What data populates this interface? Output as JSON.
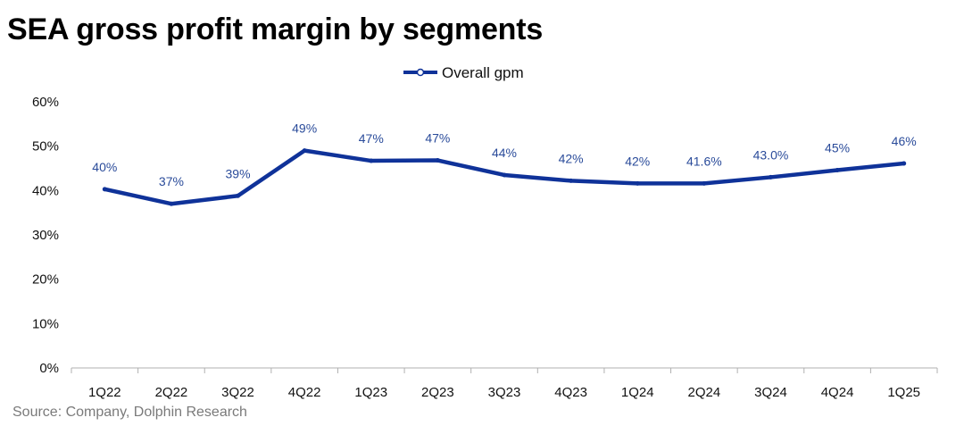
{
  "title": "SEA gross profit margin by segments",
  "source": "Source: Company, Dolphin Research",
  "colors": {
    "line": "#0f3299",
    "label": "#2a4b9a",
    "axis": "#b0b0b0"
  },
  "chart_data": {
    "type": "line",
    "title": "SEA gross profit margin by segments",
    "xlabel": "",
    "ylabel": "",
    "categories": [
      "1Q22",
      "2Q22",
      "3Q22",
      "4Q22",
      "1Q23",
      "2Q23",
      "3Q23",
      "4Q23",
      "1Q24",
      "2Q24",
      "3Q24",
      "4Q24",
      "1Q25"
    ],
    "series": [
      {
        "name": "Overall gpm",
        "values": [
          40.3,
          37.0,
          38.8,
          49.0,
          46.7,
          46.8,
          43.5,
          42.2,
          41.6,
          41.6,
          43.0,
          44.6,
          46.1
        ],
        "labels": [
          "40%",
          "37%",
          "39%",
          "49%",
          "47%",
          "47%",
          "44%",
          "42%",
          "42%",
          "41.6%",
          "43.0%",
          "45%",
          "46%"
        ]
      }
    ],
    "ylim": [
      0,
      60
    ],
    "yticks": [
      0,
      10,
      20,
      30,
      40,
      50,
      60
    ],
    "ytick_labels": [
      "0%",
      "10%",
      "20%",
      "30%",
      "40%",
      "50%",
      "60%"
    ],
    "grid": false,
    "legend_position": "top-center"
  }
}
